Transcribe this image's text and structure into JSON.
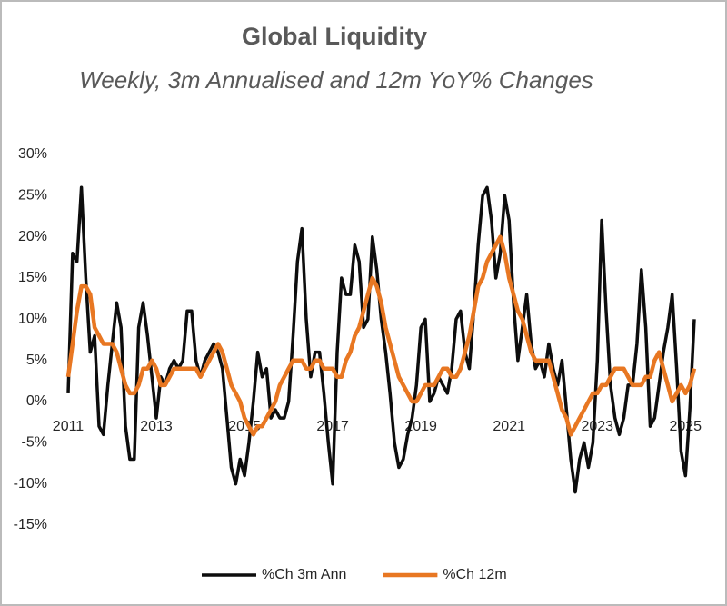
{
  "chart_data": {
    "type": "line",
    "title": "Global Liquidity",
    "subtitle": "Weekly, 3m Annualised and 12m YoY% Changes",
    "x": [
      2011,
      2011.1,
      2011.2,
      2011.3,
      2011.4,
      2011.5,
      2011.6,
      2011.7,
      2011.8,
      2011.9,
      2012,
      2012.1,
      2012.2,
      2012.3,
      2012.4,
      2012.5,
      2012.6,
      2012.7,
      2012.8,
      2012.9,
      2013,
      2013.1,
      2013.2,
      2013.3,
      2013.4,
      2013.5,
      2013.6,
      2013.7,
      2013.8,
      2013.9,
      2014,
      2014.1,
      2014.2,
      2014.3,
      2014.4,
      2014.5,
      2014.6,
      2014.7,
      2014.8,
      2014.9,
      2015,
      2015.1,
      2015.2,
      2015.3,
      2015.4,
      2015.5,
      2015.6,
      2015.7,
      2015.8,
      2015.9,
      2016,
      2016.1,
      2016.2,
      2016.3,
      2016.4,
      2016.5,
      2016.6,
      2016.7,
      2016.8,
      2016.9,
      2017,
      2017.1,
      2017.2,
      2017.3,
      2017.4,
      2017.5,
      2017.6,
      2017.7,
      2017.8,
      2017.9,
      2018,
      2018.1,
      2018.2,
      2018.3,
      2018.4,
      2018.5,
      2018.6,
      2018.7,
      2018.8,
      2018.9,
      2019,
      2019.1,
      2019.2,
      2019.3,
      2019.4,
      2019.5,
      2019.6,
      2019.7,
      2019.8,
      2019.9,
      2020,
      2020.1,
      2020.2,
      2020.3,
      2020.4,
      2020.5,
      2020.6,
      2020.7,
      2020.8,
      2020.9,
      2021,
      2021.1,
      2021.2,
      2021.3,
      2021.4,
      2021.5,
      2021.6,
      2021.7,
      2021.8,
      2021.9,
      2022,
      2022.1,
      2022.2,
      2022.3,
      2022.4,
      2022.5,
      2022.6,
      2022.7,
      2022.8,
      2022.9,
      2023,
      2023.1,
      2023.2,
      2023.3,
      2023.4,
      2023.5,
      2023.6,
      2023.7,
      2023.8,
      2023.9,
      2024,
      2024.1,
      2024.2,
      2024.3,
      2024.4,
      2024.5,
      2024.6,
      2024.7,
      2024.8,
      2024.9,
      2025,
      2025.1,
      2025.2
    ],
    "series": [
      {
        "name": "%Ch 3m Ann",
        "color": "#0d0d0d",
        "width": 3.5,
        "values": [
          1,
          18,
          17,
          26,
          15,
          6,
          8,
          -3,
          -4,
          2,
          7,
          12,
          9,
          -3,
          -7,
          -7,
          9,
          12,
          8,
          3,
          -2,
          3,
          2,
          4,
          5,
          4,
          5,
          11,
          11,
          5,
          3,
          5,
          6,
          7,
          6,
          4,
          -2,
          -8,
          -10,
          -7,
          -9,
          -5,
          0,
          6,
          3,
          4,
          -2,
          -1,
          -2,
          -2,
          0,
          8,
          17,
          21,
          10,
          3,
          6,
          6,
          1,
          -5,
          -10,
          6,
          15,
          13,
          13,
          19,
          17,
          9,
          10,
          20,
          16,
          10,
          6,
          1,
          -5,
          -8,
          -7,
          -4,
          -2,
          2,
          9,
          10,
          0,
          1,
          3,
          2,
          1,
          4,
          10,
          11,
          6,
          4,
          11,
          19,
          25,
          26,
          22,
          15,
          18,
          25,
          22,
          12,
          5,
          9,
          13,
          7,
          4,
          5,
          3,
          7,
          4,
          2,
          5,
          -1,
          -7,
          -11,
          -7,
          -5,
          -8,
          -5,
          5,
          22,
          11,
          2,
          -2,
          -4,
          -2,
          2,
          2,
          7,
          16,
          9,
          -3,
          -2,
          2,
          6,
          9,
          13,
          4,
          -6,
          -9,
          -1,
          10
        ]
      },
      {
        "name": "%Ch 12m",
        "color": "#e87722",
        "width": 4.5,
        "values": [
          3,
          7,
          11,
          14,
          14,
          13,
          9,
          8,
          7,
          7,
          7,
          6,
          4,
          2,
          1,
          1,
          2,
          4,
          4,
          5,
          4,
          2,
          2,
          3,
          4,
          4,
          4,
          4,
          4,
          4,
          3,
          4,
          5,
          6,
          7,
          6,
          4,
          2,
          1,
          0,
          -2,
          -3,
          -4,
          -3,
          -3,
          -2,
          -1,
          0,
          2,
          3,
          4,
          5,
          5,
          5,
          4,
          4,
          5,
          5,
          4,
          4,
          4,
          3,
          3,
          5,
          6,
          8,
          9,
          11,
          13,
          15,
          14,
          12,
          9,
          7,
          5,
          3,
          2,
          1,
          0,
          0,
          1,
          2,
          2,
          2,
          3,
          4,
          4,
          3,
          3,
          4,
          6,
          8,
          11,
          14,
          15,
          17,
          18,
          19,
          20,
          18,
          15,
          13,
          11,
          10,
          8,
          6,
          5,
          5,
          5,
          5,
          3,
          1,
          -1,
          -2,
          -4,
          -3,
          -2,
          -1,
          0,
          1,
          1,
          2,
          2,
          3,
          4,
          4,
          4,
          3,
          2,
          2,
          2,
          3,
          3,
          5,
          6,
          4,
          2,
          0,
          1,
          2,
          1,
          2,
          4
        ]
      }
    ],
    "xlim": [
      2011,
      2025.2
    ],
    "xticks": [
      2011,
      2013,
      2015,
      2017,
      2019,
      2021,
      2023,
      2025
    ],
    "ylim": [
      -15,
      30
    ],
    "yticks": [
      {
        "value": -15,
        "label": "-15%"
      },
      {
        "value": -10,
        "label": "-10%"
      },
      {
        "value": -5,
        "label": "-5%"
      },
      {
        "value": 0,
        "label": "0%"
      },
      {
        "value": 5,
        "label": "5%"
      },
      {
        "value": 10,
        "label": "10%"
      },
      {
        "value": 15,
        "label": "15%"
      },
      {
        "value": 20,
        "label": "20%"
      },
      {
        "value": 25,
        "label": "25%"
      },
      {
        "value": 30,
        "label": "30%"
      }
    ],
    "grid": false,
    "legend": "bottom"
  }
}
